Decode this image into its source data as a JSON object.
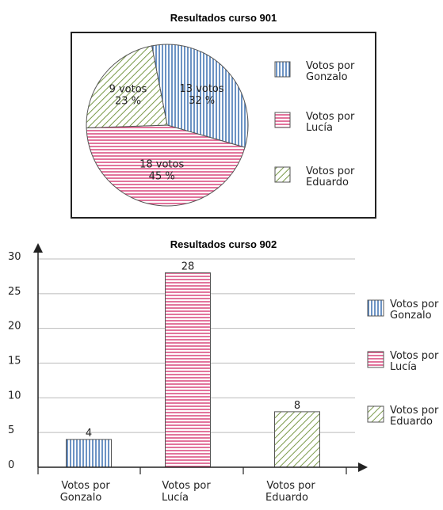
{
  "chart_data": [
    {
      "type": "pie",
      "title": "Resultados curso 901",
      "categories": [
        "Votos por Gonzalo",
        "Votos por Lucía",
        "Votos por Eduardo"
      ],
      "values": [
        13,
        18,
        9
      ],
      "percent_labels": [
        "32 %",
        "45 %",
        "23 %"
      ],
      "value_labels": [
        "13 votos",
        "18 votos",
        "9 votos"
      ],
      "legend": [
        {
          "line1": "Votos por",
          "line2": "Gonzalo"
        },
        {
          "line1": "Votos por",
          "line2": "Lucía"
        },
        {
          "line1": "Votos por",
          "line2": "Eduardo"
        }
      ],
      "legend_position": "right",
      "colors": [
        "#3a6fb0",
        "#d9457a",
        "#7a9a4a"
      ]
    },
    {
      "type": "bar",
      "title": "Resultados curso 902",
      "categories": [
        "Votos por Gonzalo",
        "Votos por Lucía",
        "Votos por Eduardo"
      ],
      "category_labels": [
        {
          "line1": "Votos por",
          "line2": "Gonzalo"
        },
        {
          "line1": "Votos por",
          "line2": "Lucía"
        },
        {
          "line1": "Votos por",
          "line2": "Eduardo"
        }
      ],
      "values": [
        4,
        28,
        8
      ],
      "ylim": [
        0,
        30
      ],
      "yticks": [
        "0",
        "5",
        "10",
        "15",
        "20",
        "25",
        "30"
      ],
      "grid": true,
      "legend": [
        {
          "line1": "Votos por",
          "line2": "Gonzalo"
        },
        {
          "line1": "Votos por",
          "line2": "Lucía"
        },
        {
          "line1": "Votos por",
          "line2": "Eduardo"
        }
      ],
      "legend_position": "right",
      "colors": [
        "#3a6fb0",
        "#d9457a",
        "#7a9a4a"
      ]
    }
  ]
}
